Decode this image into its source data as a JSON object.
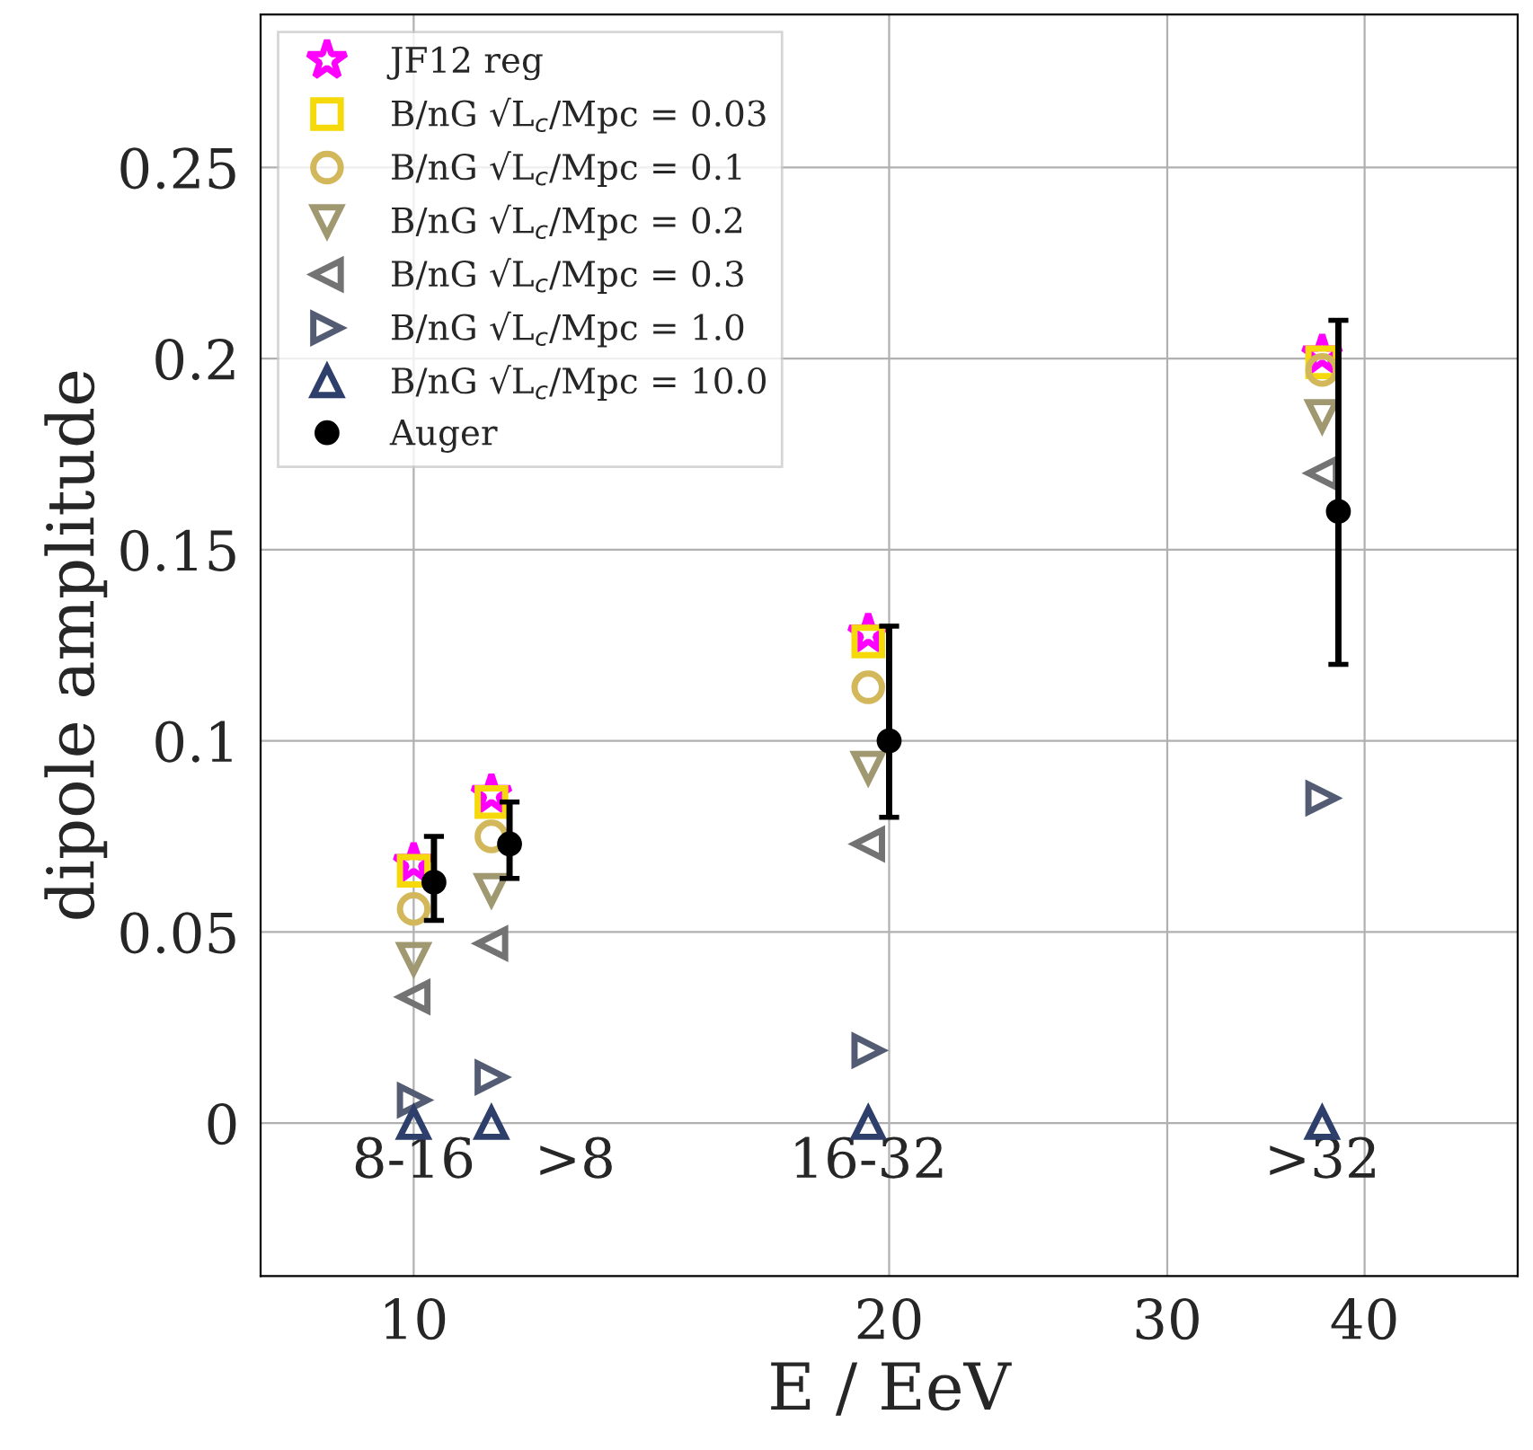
{
  "chart_data": {
    "type": "scatter",
    "xlabel": "E / EeV",
    "ylabel": "dipole amplitude",
    "log": "x",
    "xlim": [
      8,
      50
    ],
    "xticks": [
      10,
      20,
      30,
      40
    ],
    "ylim": [
      -0.04,
      0.29
    ],
    "yticks": [
      0,
      0.05,
      0.1,
      0.15,
      0.2,
      0.25
    ],
    "grid": true,
    "legend": "top left",
    "annotations": [
      "8-16",
      ">8",
      "16-32",
      ">32"
    ],
    "series": [
      {
        "name": "JF12 reg",
        "color": "#ff00ff",
        "marker": "star",
        "x": [
          10,
          11.2,
          19.4,
          37.6
        ],
        "values": [
          0.068,
          0.086,
          0.128,
          0.201
        ]
      },
      {
        "name": "B/nG √L$_{c}$/Mpc = 0.03",
        "color": "#f5d90a",
        "marker": "square",
        "x": [
          10,
          11.2,
          19.4,
          37.6
        ],
        "values": [
          0.066,
          0.084,
          0.126,
          0.199
        ]
      },
      {
        "name": "B/nG √L$_{c}$/Mpc = 0.1",
        "color": "#d2b85a",
        "marker": "circle",
        "x": [
          10,
          11.2,
          19.4,
          37.6
        ],
        "values": [
          0.056,
          0.075,
          0.114,
          0.197
        ]
      },
      {
        "name": "B/nG √L$_{c}$/Mpc = 0.2",
        "color": "#9f9870",
        "marker": "triangle_down",
        "x": [
          10,
          11.2,
          19.4,
          37.6
        ],
        "values": [
          0.043,
          0.061,
          0.093,
          0.185
        ]
      },
      {
        "name": "B/nG √L$_{c}$/Mpc = 0.3",
        "color": "#737373",
        "marker": "triangle_left",
        "x": [
          10,
          11.2,
          19.4,
          37.6
        ],
        "values": [
          0.033,
          0.047,
          0.073,
          0.17
        ]
      },
      {
        "name": "B/nG √L$_{c}$/Mpc = 1.0",
        "color": "#535c72",
        "marker": "triangle_right",
        "x": [
          10,
          11.2,
          19.4,
          37.6
        ],
        "values": [
          0.006,
          0.012,
          0.019,
          0.085
        ]
      },
      {
        "name": "B/nG √L$_{c}$/Mpc = 10.0",
        "color": "#2e3f6b",
        "marker": "triangle",
        "x": [
          10,
          11.2,
          19.4,
          37.6
        ],
        "values": [
          0,
          0,
          0,
          0
        ]
      },
      {
        "name": "Auger",
        "color": "#000000",
        "marker": "circle",
        "x": [
          10.3,
          11.5,
          20,
          38.5
        ],
        "values": [
          0.063,
          0.073,
          0.1,
          0.16
        ],
        "errors": [
          [
            0.053,
            0.075
          ],
          [
            0.064,
            0.084
          ],
          [
            0.08,
            0.13
          ],
          [
            0.12,
            0.21
          ]
        ]
      }
    ]
  }
}
